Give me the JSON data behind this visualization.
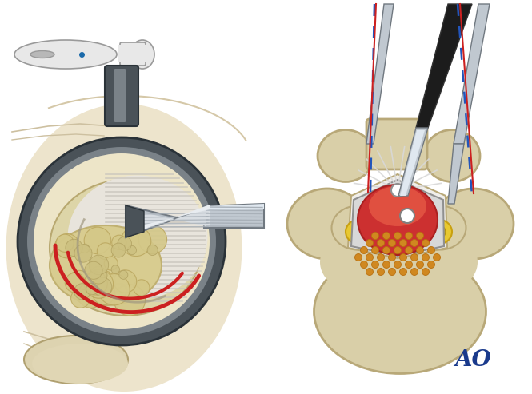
{
  "bg_color": "#ffffff",
  "figure_size": [
    6.65,
    4.93
  ],
  "dpi": 100,
  "ao_text": "AO",
  "ao_color": "#1a3a8c",
  "ao_fontsize": 20,
  "bone_color": "#d9cfa8",
  "bone_edge": "#b8a878",
  "yellow_lig": "#e8c830",
  "yellow_lig_edge": "#c8a010",
  "dark_gray": "#4a5258",
  "med_gray": "#7a8288",
  "light_gray_blue": "#b8c0c8",
  "instrument_silver": "#c0c8d0",
  "instrument_edge": "#707880",
  "red_cord": "#cc3030",
  "red_lighter": "#e05050",
  "orange_dots": "#d08820",
  "blue_dashed": "#2255bb",
  "red_line": "#cc2020",
  "black_handle": "#1c1c1c",
  "skin_bg": "#f0e8d0",
  "skin_curve": "#e0d4b8",
  "cream_disc": "#e8ddb0",
  "cauliflower": "#d8c890",
  "cauliflower_edge": "#c0a860",
  "body_fill": "#e8e8e8",
  "body_edge": "#9a9a9a",
  "blue_dot": "#1a6aaa",
  "white": "#ffffff",
  "gray_silver": "#a8b0b8",
  "cord_gray": "#c0c0c0",
  "cord_edge": "#909090"
}
